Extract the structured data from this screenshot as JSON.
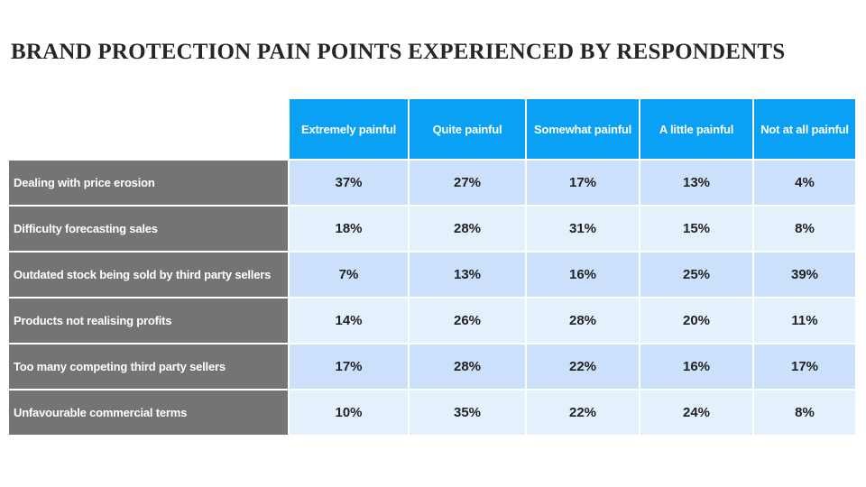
{
  "title": "BRAND PROTECTION PAIN POINTS EXPERIENCED BY RESPONDENTS",
  "colors": {
    "header_bg": "#0aa1f4",
    "row_label_bg": "#747474",
    "cell_bg_odd": "#cbe1fb",
    "cell_bg_even": "#e5f0fd"
  },
  "table": {
    "columns": [
      "Extremely painful",
      "Quite painful",
      "Somewhat painful",
      "A little painful",
      "Not at all painful"
    ],
    "rows": [
      {
        "label": "Dealing with price erosion",
        "values": [
          "37%",
          "27%",
          "17%",
          "13%",
          "4%"
        ]
      },
      {
        "label": "Difficulty forecasting sales",
        "values": [
          "18%",
          "28%",
          "31%",
          "15%",
          "8%"
        ]
      },
      {
        "label": "Outdated stock being sold by third party sellers",
        "values": [
          "7%",
          "13%",
          "16%",
          "25%",
          "39%"
        ]
      },
      {
        "label": "Products not realising profits",
        "values": [
          "14%",
          "26%",
          "28%",
          "20%",
          "11%"
        ]
      },
      {
        "label": "Too many competing third party sellers",
        "values": [
          "17%",
          "28%",
          "22%",
          "16%",
          "17%"
        ]
      },
      {
        "label": "Unfavourable commercial terms",
        "values": [
          "10%",
          "35%",
          "22%",
          "24%",
          "8%"
        ]
      }
    ]
  }
}
